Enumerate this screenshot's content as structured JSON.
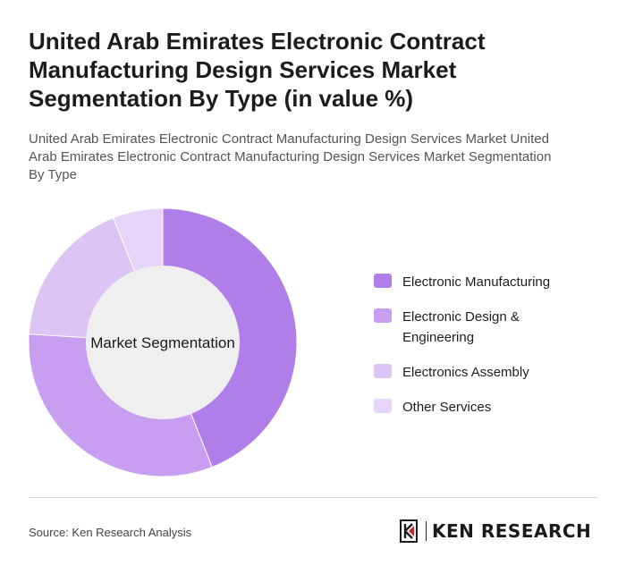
{
  "header": {
    "title": "United Arab Emirates Electronic Contract Manufacturing Design Services Market Segmentation By Type (in value %)",
    "subtitle": "United Arab Emirates Electronic Contract Manufacturing Design Services Market United Arab Emirates Electronic Contract Manufacturing Design Services Market Segmentation By Type"
  },
  "chart_data": {
    "type": "pie",
    "variant": "donut",
    "center_label": "Market Segmentation",
    "legend_position": "right",
    "categories": [
      "Electronic Manufacturing",
      "Electronic Design & Engineering",
      "Electronics Assembly",
      "Other Services"
    ],
    "values": [
      44,
      32,
      18,
      6
    ],
    "colors": [
      "#b07ee8",
      "#c79ef0",
      "#dcc4f5",
      "#e6d5f8"
    ]
  },
  "footer": {
    "source": "Source: Ken Research Analysis",
    "brand": "KEN RESEARCH"
  }
}
